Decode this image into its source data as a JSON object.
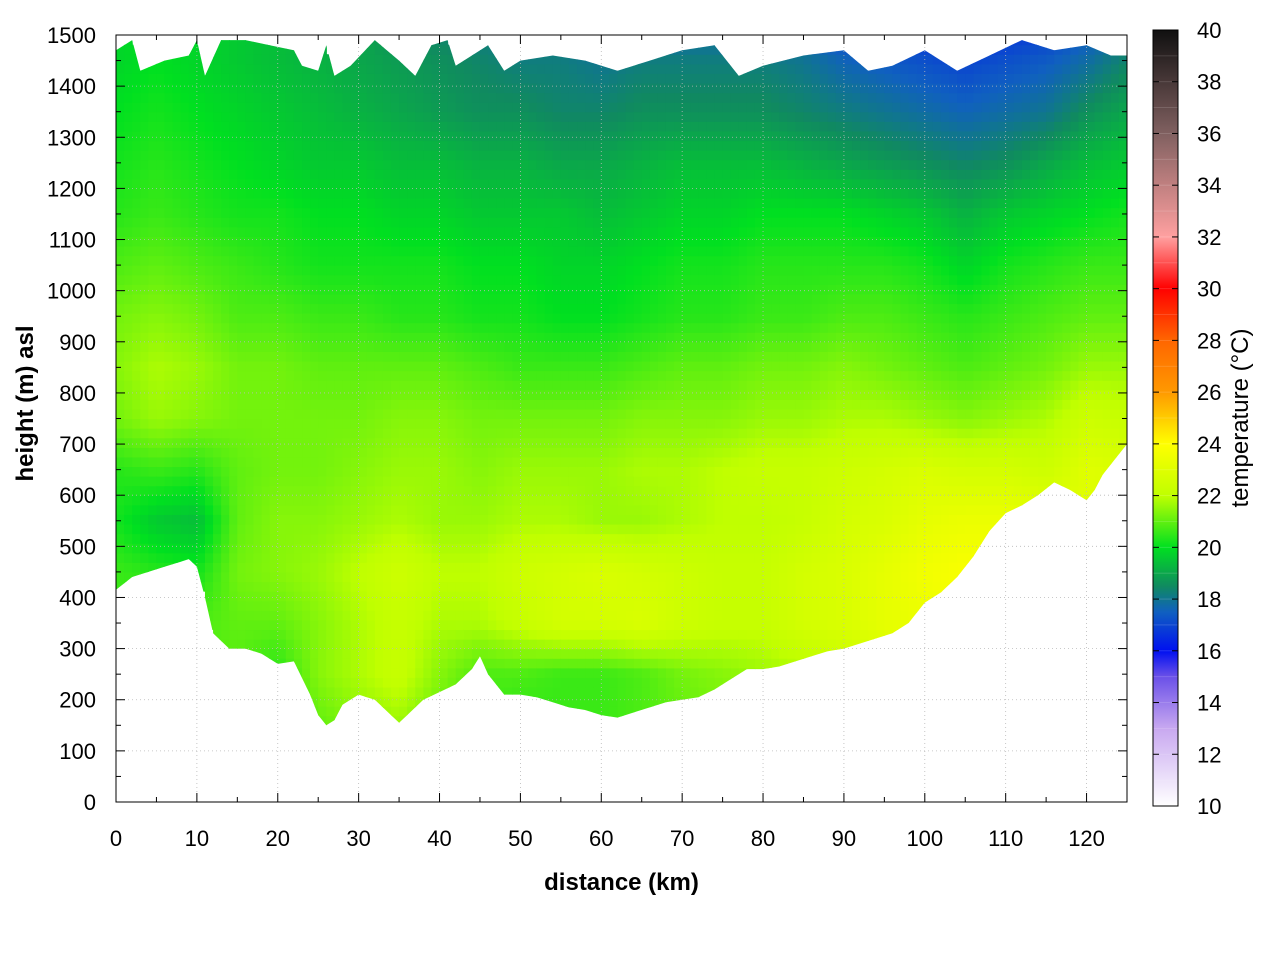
{
  "chart_data": {
    "type": "heatmap",
    "title": "",
    "xlabel": "distance (km)",
    "ylabel": "height (m) asl",
    "colorbar_label": "temperature (°C)",
    "xlim": [
      0,
      125
    ],
    "ylim": [
      0,
      1500
    ],
    "x_ticks": [
      0,
      10,
      20,
      30,
      40,
      50,
      60,
      70,
      80,
      90,
      100,
      110,
      120
    ],
    "y_ticks": [
      0,
      100,
      200,
      300,
      400,
      500,
      600,
      700,
      800,
      900,
      1000,
      1100,
      1200,
      1300,
      1400,
      1500
    ],
    "colorbar_range": [
      10,
      40
    ],
    "colorbar_ticks": [
      10,
      12,
      14,
      16,
      18,
      20,
      22,
      24,
      26,
      28,
      30,
      32,
      34,
      36,
      38,
      40
    ],
    "grid": true,
    "colormap": [
      {
        "value": 10,
        "color": "#ffffff"
      },
      {
        "value": 13,
        "color": "#c8a8f0"
      },
      {
        "value": 15,
        "color": "#6a50e8"
      },
      {
        "value": 16,
        "color": "#0010f0"
      },
      {
        "value": 17.5,
        "color": "#1060c0"
      },
      {
        "value": 18.5,
        "color": "#108a60"
      },
      {
        "value": 20,
        "color": "#00e020"
      },
      {
        "value": 22,
        "color": "#c0ff00"
      },
      {
        "value": 24,
        "color": "#ffff00"
      },
      {
        "value": 26,
        "color": "#ff9900"
      },
      {
        "value": 28,
        "color": "#ff6600"
      },
      {
        "value": 30,
        "color": "#ff0000"
      },
      {
        "value": 32,
        "color": "#ffa0a0"
      },
      {
        "value": 34,
        "color": "#c08080"
      },
      {
        "value": 36,
        "color": "#806060"
      },
      {
        "value": 40,
        "color": "#101010"
      }
    ],
    "terrain_bottom": {
      "x": [
        0,
        2,
        4,
        6,
        8,
        9,
        10,
        11,
        12,
        14,
        16,
        18,
        20,
        22,
        24,
        25,
        26,
        27,
        28,
        30,
        32,
        34,
        35,
        36,
        38,
        40,
        42,
        44,
        45,
        46,
        48,
        50,
        52,
        54,
        56,
        58,
        60,
        62,
        64,
        66,
        68,
        70,
        72,
        74,
        76,
        78,
        80,
        82,
        84,
        86,
        88,
        90,
        92,
        94,
        96,
        98,
        100,
        102,
        104,
        106,
        108,
        110,
        112,
        114,
        116,
        118,
        119,
        120,
        121,
        122,
        124,
        125
      ],
      "y": [
        415,
        440,
        450,
        460,
        470,
        475,
        460,
        400,
        330,
        300,
        300,
        290,
        270,
        275,
        210,
        170,
        150,
        160,
        190,
        210,
        200,
        170,
        155,
        170,
        200,
        215,
        230,
        260,
        285,
        250,
        210,
        210,
        205,
        195,
        185,
        180,
        170,
        165,
        175,
        185,
        195,
        200,
        205,
        220,
        240,
        260,
        260,
        265,
        275,
        285,
        295,
        300,
        310,
        320,
        330,
        350,
        390,
        410,
        440,
        480,
        530,
        565,
        580,
        600,
        625,
        610,
        600,
        590,
        610,
        640,
        680,
        700
      ]
    },
    "top_boundary": {
      "x": [
        0,
        2,
        3,
        6,
        9,
        10,
        11,
        13,
        16,
        19,
        22,
        23,
        25,
        26,
        27,
        29,
        32,
        35,
        37,
        39,
        41,
        42,
        44,
        46,
        48,
        50,
        54,
        58,
        62,
        66,
        70,
        74,
        77,
        80,
        85,
        90,
        93,
        96,
        100,
        104,
        108,
        112,
        116,
        120,
        123,
        125
      ],
      "y": [
        1470,
        1490,
        1430,
        1450,
        1460,
        1490,
        1420,
        1490,
        1490,
        1480,
        1470,
        1440,
        1430,
        1480,
        1420,
        1440,
        1490,
        1450,
        1420,
        1480,
        1490,
        1440,
        1460,
        1480,
        1430,
        1450,
        1460,
        1450,
        1430,
        1450,
        1470,
        1480,
        1420,
        1440,
        1460,
        1470,
        1430,
        1440,
        1470,
        1430,
        1460,
        1490,
        1470,
        1480,
        1460,
        1460
      ]
    },
    "cross_section_temperature": {
      "x": [
        0,
        5,
        10,
        15,
        20,
        25,
        30,
        35,
        40,
        45,
        50,
        55,
        60,
        65,
        70,
        75,
        80,
        85,
        90,
        95,
        100,
        105,
        110,
        115,
        120,
        125
      ],
      "y": [
        150,
        250,
        350,
        450,
        550,
        650,
        750,
        850,
        950,
        1050,
        1150,
        1250,
        1350,
        1450,
        1500
      ],
      "z": [
        [
          20.6,
          20.8,
          20.8,
          20.9,
          20.4,
          21.0,
          21.4,
          21.6,
          21.0,
          20.6,
          20.4,
          20.6,
          20.6,
          20.8,
          21.0,
          21.2,
          21.2,
          21.4,
          21.6,
          21.8,
          22.0,
          22.4,
          22.6,
          22.8,
          23.0,
          23.0
        ],
        [
          20.6,
          20.8,
          20.8,
          20.9,
          20.4,
          21.4,
          21.8,
          22.2,
          21.4,
          20.8,
          20.8,
          20.6,
          20.6,
          20.8,
          21.2,
          21.4,
          21.6,
          21.8,
          22.2,
          22.4,
          22.6,
          22.8,
          23.0,
          23.0,
          23.0,
          23.0
        ],
        [
          20.6,
          20.8,
          20.8,
          21.0,
          21.0,
          21.4,
          21.8,
          22.2,
          21.8,
          21.8,
          22.2,
          22.6,
          22.6,
          22.8,
          22.4,
          22.2,
          22.2,
          22.6,
          22.8,
          23.2,
          23.4,
          23.6,
          23.6,
          23.4,
          23.2,
          23.0
        ],
        [
          20.6,
          20.4,
          20.2,
          21.2,
          21.4,
          21.6,
          22.0,
          22.4,
          22.0,
          22.0,
          22.4,
          22.6,
          22.8,
          22.6,
          22.4,
          22.2,
          22.2,
          22.6,
          22.8,
          23.2,
          23.6,
          23.8,
          23.6,
          23.4,
          23.2,
          23.0
        ],
        [
          20.2,
          19.6,
          19.4,
          21.0,
          21.4,
          21.4,
          21.6,
          21.8,
          21.6,
          21.6,
          21.8,
          21.8,
          21.6,
          21.6,
          21.8,
          22.0,
          22.0,
          22.2,
          22.6,
          22.8,
          23.2,
          23.4,
          23.4,
          23.2,
          23.0,
          22.8
        ],
        [
          20.4,
          20.6,
          20.4,
          21.0,
          21.2,
          21.2,
          21.4,
          21.6,
          21.6,
          21.4,
          21.6,
          21.6,
          21.6,
          21.8,
          21.8,
          22.0,
          22.2,
          22.2,
          22.4,
          22.6,
          22.8,
          22.6,
          22.6,
          22.4,
          23.0,
          22.8
        ],
        [
          21.2,
          21.6,
          21.4,
          21.2,
          21.2,
          21.2,
          21.2,
          21.4,
          21.4,
          21.2,
          21.2,
          21.2,
          21.2,
          21.4,
          21.4,
          21.4,
          21.6,
          21.6,
          21.8,
          21.8,
          21.6,
          21.4,
          21.6,
          21.8,
          22.4,
          22.2
        ],
        [
          21.4,
          21.8,
          21.6,
          21.2,
          21.2,
          21.0,
          21.0,
          21.0,
          21.0,
          20.8,
          20.6,
          20.6,
          20.6,
          20.8,
          21.0,
          21.0,
          21.2,
          21.2,
          21.4,
          21.2,
          21.0,
          20.8,
          21.0,
          21.2,
          21.6,
          21.6
        ],
        [
          21.2,
          21.4,
          21.2,
          20.8,
          20.8,
          20.6,
          20.6,
          20.4,
          20.4,
          20.2,
          20.2,
          20.0,
          20.0,
          20.2,
          20.4,
          20.4,
          20.6,
          20.6,
          20.8,
          20.8,
          20.6,
          20.4,
          20.6,
          20.8,
          21.0,
          21.0
        ],
        [
          20.8,
          21.0,
          20.8,
          20.6,
          20.4,
          20.2,
          20.2,
          20.2,
          20.2,
          20.0,
          20.0,
          19.8,
          19.8,
          20.0,
          20.2,
          20.2,
          20.4,
          20.4,
          20.4,
          20.4,
          20.2,
          19.8,
          20.2,
          20.4,
          20.6,
          20.6
        ],
        [
          20.4,
          20.6,
          20.4,
          20.2,
          20.2,
          20.0,
          20.0,
          19.8,
          19.8,
          19.6,
          19.6,
          19.6,
          19.4,
          19.6,
          19.8,
          19.8,
          20.0,
          20.0,
          20.0,
          19.8,
          19.6,
          19.2,
          19.6,
          19.8,
          20.0,
          20.2
        ],
        [
          20.2,
          20.4,
          20.2,
          20.0,
          19.8,
          19.6,
          19.6,
          19.4,
          19.4,
          19.2,
          19.2,
          19.0,
          19.0,
          19.2,
          19.4,
          19.4,
          19.4,
          19.2,
          19.0,
          18.8,
          18.6,
          18.4,
          18.6,
          19.0,
          19.4,
          19.6
        ],
        [
          20.0,
          20.2,
          20.0,
          19.8,
          19.6,
          19.4,
          19.2,
          19.0,
          18.8,
          18.6,
          18.6,
          18.4,
          18.4,
          18.6,
          18.6,
          18.6,
          18.6,
          18.4,
          18.2,
          18.0,
          17.8,
          17.6,
          17.8,
          18.0,
          18.6,
          19.0
        ],
        [
          19.8,
          20.0,
          19.8,
          19.6,
          19.4,
          19.2,
          19.0,
          18.8,
          18.6,
          18.4,
          18.2,
          18.2,
          18.0,
          18.2,
          18.2,
          18.2,
          18.2,
          18.0,
          17.6,
          17.4,
          17.2,
          17.0,
          17.2,
          17.4,
          17.8,
          18.4
        ],
        [
          19.8,
          20.0,
          19.8,
          19.6,
          19.4,
          19.2,
          19.0,
          18.6,
          18.4,
          18.2,
          18.0,
          18.0,
          17.8,
          17.8,
          17.8,
          17.8,
          17.8,
          17.6,
          17.2,
          17.0,
          16.8,
          16.6,
          16.8,
          17.0,
          17.4,
          18.0
        ]
      ]
    }
  }
}
